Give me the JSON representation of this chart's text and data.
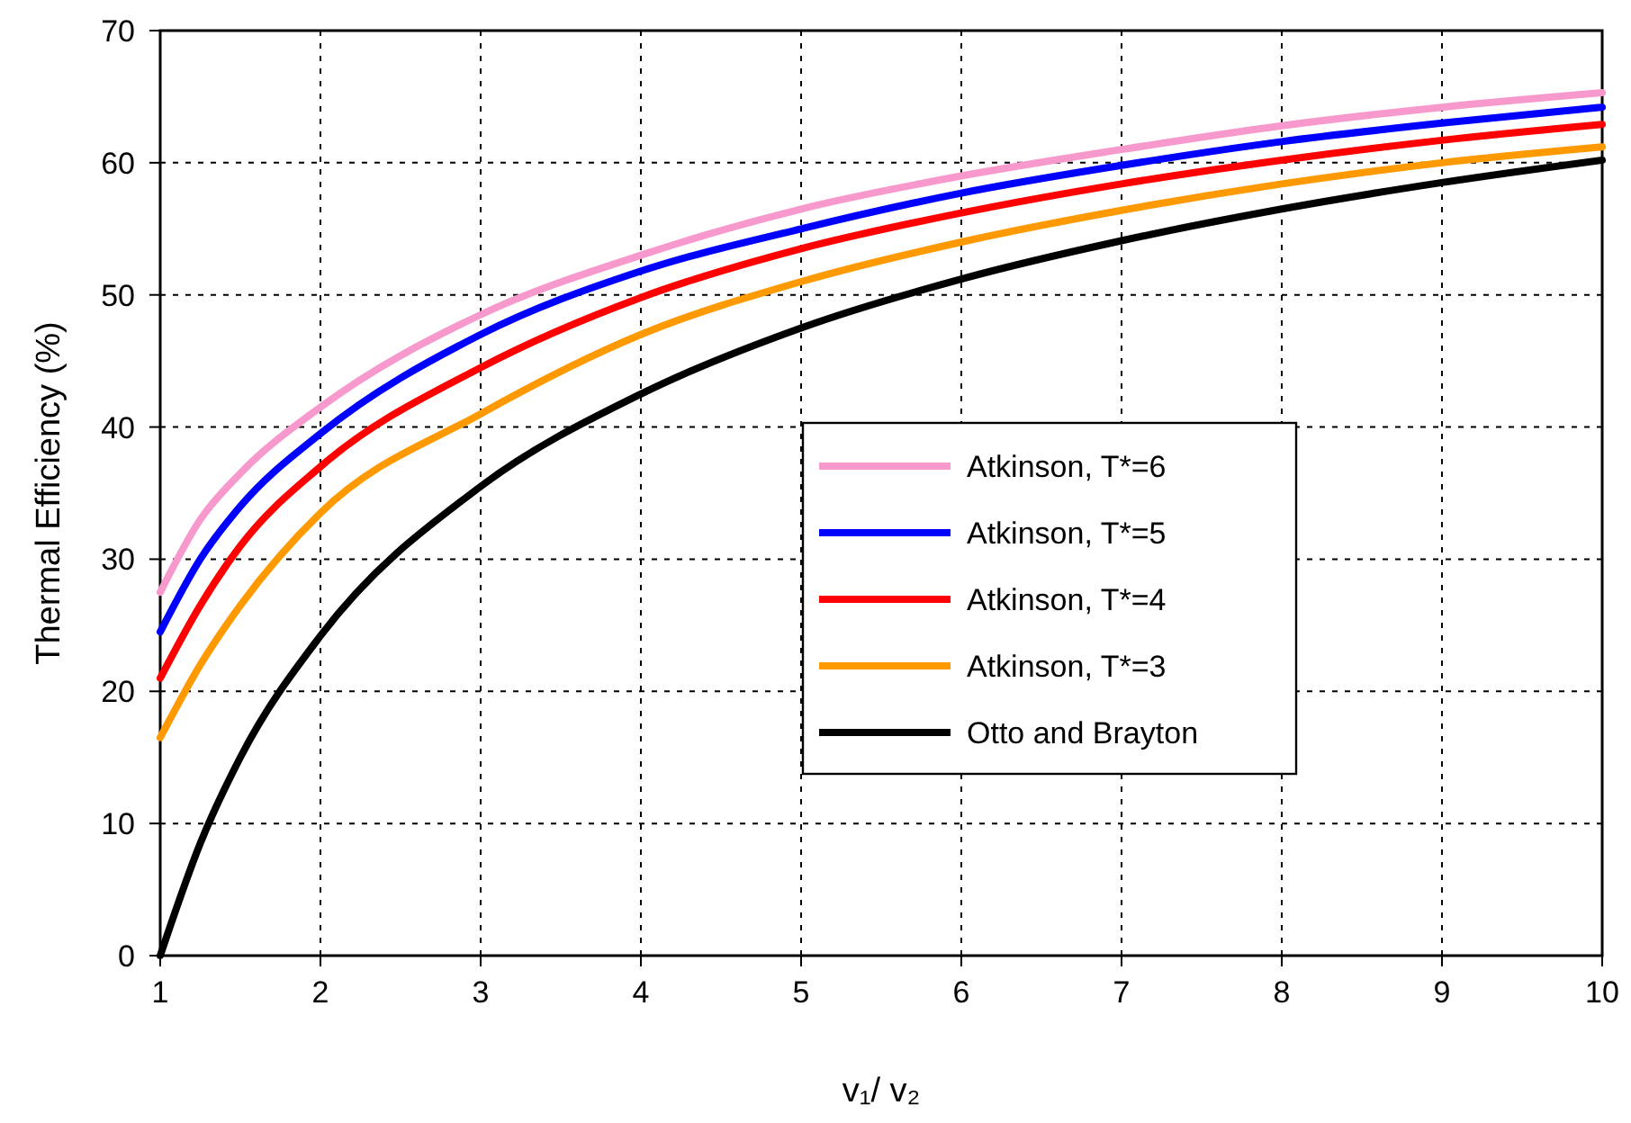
{
  "chart_data": {
    "type": "line",
    "xlabel": "v₁/ v₂",
    "ylabel": "Thermal Efficiency (%)",
    "x": [
      1,
      1.25,
      1.5,
      2,
      3,
      4,
      5,
      6,
      7,
      8,
      9,
      10
    ],
    "series": [
      {
        "name": "Atkinson, T*=6",
        "color": "#f799cc",
        "values": [
          27.5,
          33,
          36.5,
          41.5,
          48.5,
          53,
          56.5,
          59,
          61,
          62.8,
          64.2,
          65.3
        ]
      },
      {
        "name": "Atkinson, T*=5",
        "color": "#0000ff",
        "values": [
          24.5,
          30,
          34,
          39.5,
          47,
          51.8,
          55,
          57.7,
          59.8,
          61.6,
          63,
          64.2
        ]
      },
      {
        "name": "Atkinson, T*=4",
        "color": "#ff0000",
        "values": [
          21,
          26.5,
          31,
          37,
          44.5,
          49.8,
          53.5,
          56.2,
          58.4,
          60.2,
          61.7,
          62.9
        ]
      },
      {
        "name": "Atkinson, T*=3",
        "color": "#ff9900",
        "values": [
          16.5,
          22,
          26.5,
          33.5,
          41,
          47,
          51,
          54,
          56.4,
          58.4,
          60,
          61.2
        ]
      },
      {
        "name": "Otto and Brayton",
        "color": "#000000",
        "values": [
          0,
          8.5,
          15,
          24.2,
          35.5,
          42.5,
          47.5,
          51.2,
          54.1,
          56.5,
          58.5,
          60.2
        ]
      }
    ],
    "xlim": [
      1,
      10
    ],
    "xticks": [
      1,
      2,
      3,
      4,
      5,
      6,
      7,
      8,
      9,
      10
    ],
    "ylim": [
      0,
      70
    ],
    "yticks": [
      0,
      10,
      20,
      30,
      40,
      50,
      60,
      70
    ],
    "grid": true,
    "legend": "right",
    "marker": "none",
    "line_style": "solid"
  }
}
